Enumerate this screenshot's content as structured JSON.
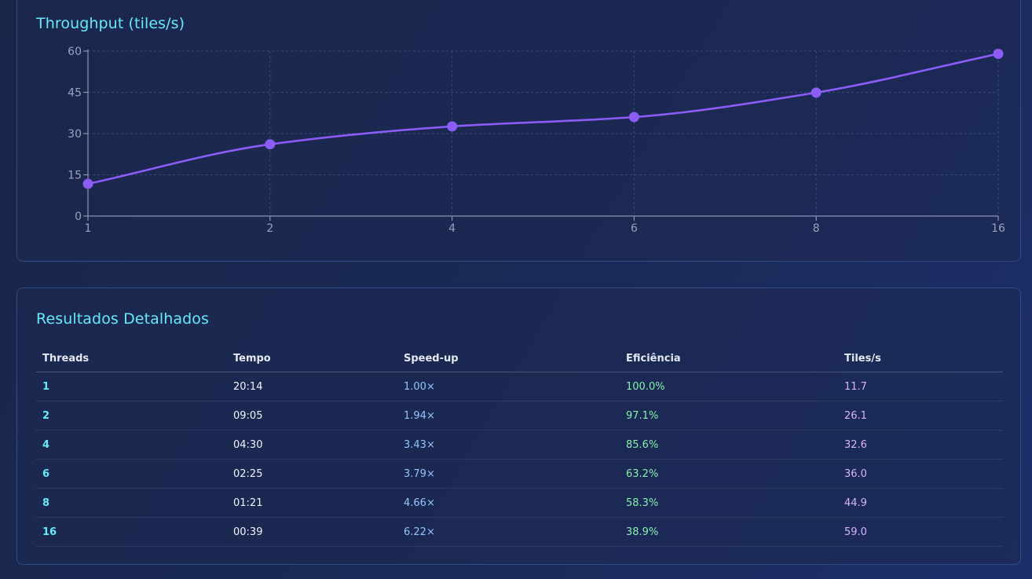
{
  "chart_section": {
    "title": "Throughput (tiles/s)"
  },
  "chart_data": {
    "type": "line",
    "title": "Throughput (tiles/s)",
    "categories": [
      "1",
      "2",
      "4",
      "6",
      "8",
      "16"
    ],
    "series": [
      {
        "values": [
          11.7,
          26.1,
          32.6,
          36.0,
          44.9,
          59.0
        ],
        "color": "#8b5cf6"
      }
    ],
    "y_ticks": [
      0,
      15,
      30,
      45,
      60
    ],
    "ylim": [
      0,
      60
    ],
    "grid": true,
    "grid_style": "dashed"
  },
  "table_section": {
    "title": "Resultados Detalhados",
    "columns": [
      "Threads",
      "Tempo",
      "Speed-up",
      "Eficiência",
      "Tiles/s"
    ],
    "rows": [
      {
        "threads": "1",
        "tempo": "20:14",
        "speedup": "1.00×",
        "eficiencia": "100.0%",
        "tiles": "11.7"
      },
      {
        "threads": "2",
        "tempo": "09:05",
        "speedup": "1.94×",
        "eficiencia": "97.1%",
        "tiles": "26.1"
      },
      {
        "threads": "4",
        "tempo": "04:30",
        "speedup": "3.43×",
        "eficiencia": "85.6%",
        "tiles": "32.6"
      },
      {
        "threads": "6",
        "tempo": "02:25",
        "speedup": "3.79×",
        "eficiencia": "63.2%",
        "tiles": "36.0"
      },
      {
        "threads": "8",
        "tempo": "01:21",
        "speedup": "4.66×",
        "eficiencia": "58.3%",
        "tiles": "44.9"
      },
      {
        "threads": "16",
        "tempo": "00:39",
        "speedup": "6.22×",
        "eficiencia": "38.9%",
        "tiles": "59.0"
      }
    ]
  },
  "colors": {
    "accent_title": "#67e8f9",
    "line": "#8b5cf6",
    "speedup": "#93c5fd",
    "efficiency": "#86efac",
    "tiles": "#d8b4fe"
  }
}
